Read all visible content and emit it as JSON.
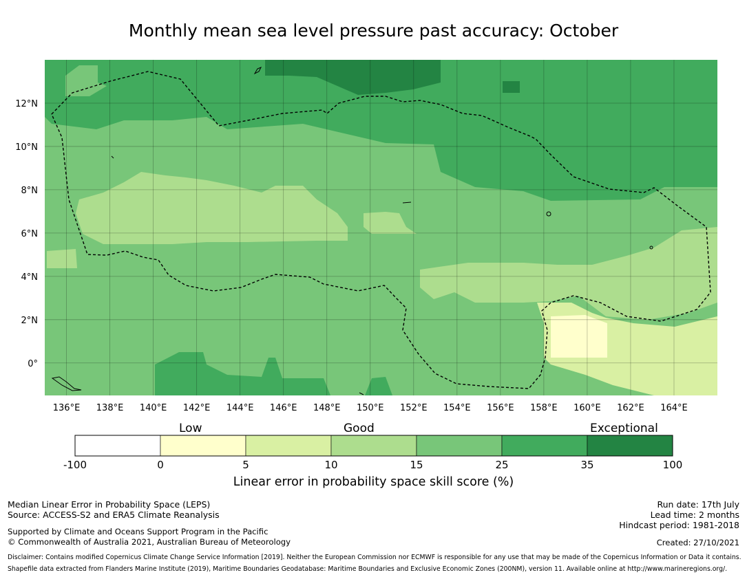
{
  "title": "Monthly mean sea level pressure past accuracy: October",
  "map": {
    "lat_ticks": [
      "12°N",
      "10°N",
      "8°N",
      "6°N",
      "4°N",
      "2°N",
      "0°"
    ],
    "lon_ticks": [
      "136°E",
      "138°E",
      "140°E",
      "142°E",
      "144°E",
      "146°E",
      "148°E",
      "150°E",
      "152°E",
      "154°E",
      "156°E",
      "158°E",
      "160°E",
      "162°E",
      "164°E"
    ],
    "lon_range": [
      135,
      166
    ],
    "lat_range": [
      -1.5,
      14
    ],
    "grid": true
  },
  "legend": {
    "categories": [
      "Low",
      "Good",
      "Exceptional"
    ],
    "bounds": [
      "-100",
      "0",
      "5",
      "10",
      "15",
      "25",
      "35",
      "100"
    ],
    "colors": [
      "#ffffff",
      "#ffffcc",
      "#d9f0a3",
      "#addd8e",
      "#78c679",
      "#41ab5d",
      "#238443"
    ],
    "label": "Linear error in probability space skill score (%)"
  },
  "footer": {
    "left": [
      "Median Linear Error in Probability Space (LEPS)",
      "Source: ACCESS-S2 and ERA5 Climate Reanalysis"
    ],
    "support": [
      "Supported by Climate and Oceans Support Program in the Pacific",
      "© Commonwealth of Australia 2021, Australian Bureau of Meteorology"
    ],
    "right": [
      "Run date: 17th July",
      "Lead time: 2 months",
      "Hindcast period: 1981-2018"
    ],
    "created": "Created: 27/10/2021",
    "disclaimer": "Disclaimer: Contains modified Copernicus Climate Change Service Information [2019]. Neither the European Commission nor ECMWF is responsible for any use that may be made of the Copernicus Information or Data it contains.",
    "shapefile": "Shapefile data extracted from Flanders Marine Institute (2019), Maritime Boundaries Geodatabase: Maritime Boundaries and Exclusive Economic Zones (200NM), version 11. Available online at http://www.marineregions.org/."
  }
}
